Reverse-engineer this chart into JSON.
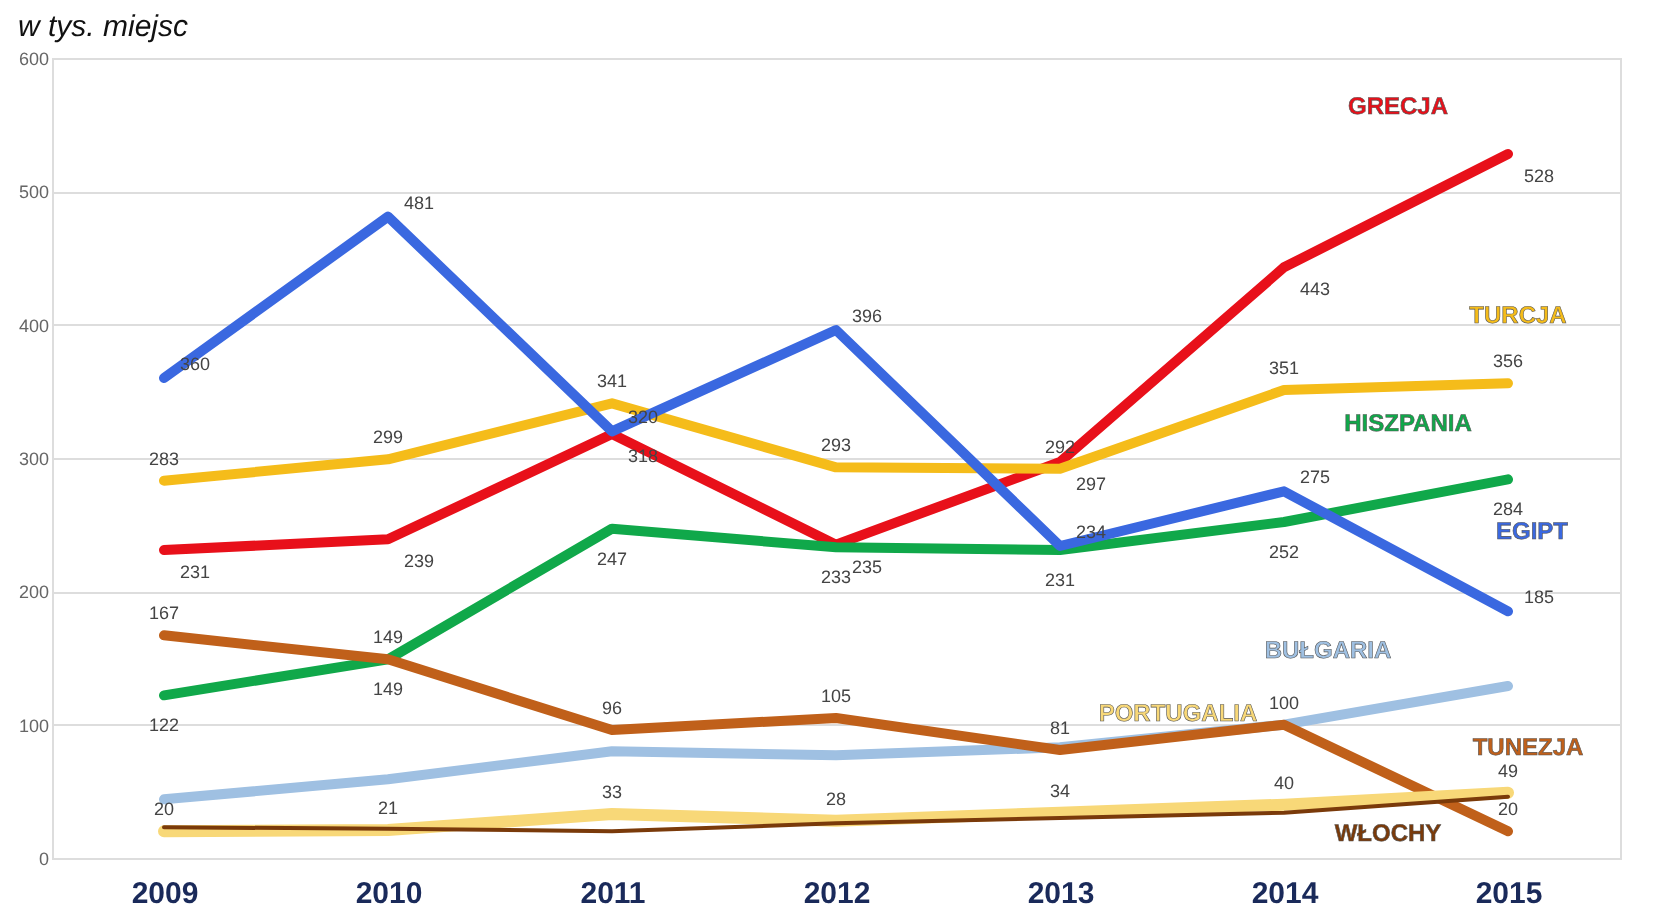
{
  "chart_data": {
    "type": "line",
    "title": "w tys. miejsc",
    "categories": [
      "2009",
      "2010",
      "2011",
      "2012",
      "2013",
      "2014",
      "2015"
    ],
    "ylim": [
      0,
      600
    ],
    "yticks": [
      0,
      100,
      200,
      300,
      400,
      500,
      600
    ],
    "grid": "y",
    "marker": "none",
    "line_style": "solid",
    "series": [
      {
        "name": "GRECJA",
        "color": "#e8101a",
        "values": [
          231,
          239,
          318,
          235,
          297,
          443,
          528
        ],
        "value_labels": [
          "231",
          "239",
          "318",
          "235",
          "297",
          "443",
          "528"
        ]
      },
      {
        "name": "TURCJA",
        "color": "#f5bc1a",
        "values": [
          283,
          299,
          341,
          293,
          292,
          351,
          356
        ],
        "value_labels": [
          "283",
          "299",
          "341",
          "293",
          "292",
          "351",
          "356"
        ]
      },
      {
        "name": "HISZPANIA",
        "color": "#10a84a",
        "values": [
          122,
          149,
          247,
          233,
          231,
          252,
          284
        ],
        "value_labels": [
          "122",
          "149",
          "247",
          "233",
          "231",
          "252",
          "284"
        ]
      },
      {
        "name": "EGIPT",
        "color": "#3a68e0",
        "values": [
          360,
          481,
          320,
          396,
          234,
          275,
          185
        ],
        "value_labels": [
          "360",
          "481",
          "320",
          "396",
          "234",
          "275",
          "185"
        ]
      },
      {
        "name": "BUŁGARIA",
        "color": "#9fc0e2",
        "values": [
          44,
          59,
          80,
          77,
          83,
          100,
          129
        ]
      },
      {
        "name": "TUNEZJA",
        "color": "#c0601a",
        "values": [
          167,
          149,
          96,
          105,
          81,
          100,
          20
        ],
        "value_labels": [
          "167",
          "149",
          "96",
          "105",
          "81",
          "100",
          "20"
        ]
      },
      {
        "name": "PORTUGALIA",
        "color": "#f8d878",
        "values": [
          20,
          21,
          33,
          28,
          34,
          40,
          49
        ],
        "value_labels": [
          "20",
          "21",
          "33",
          "28",
          "34",
          "40",
          "49"
        ]
      },
      {
        "name": "WŁOCHY",
        "color": "#7a3a0a",
        "values": [
          23,
          22,
          20,
          26,
          30,
          34,
          46
        ]
      }
    ]
  }
}
